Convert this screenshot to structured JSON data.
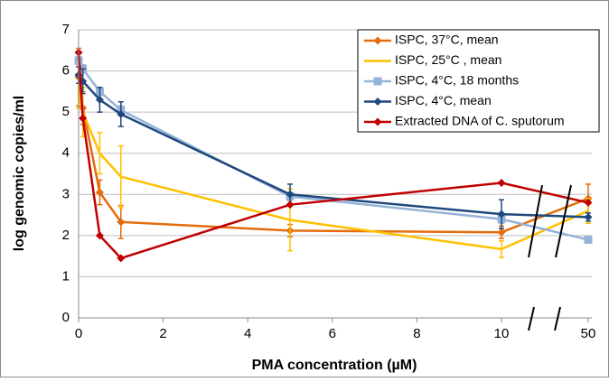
{
  "chart_data": {
    "type": "line",
    "x_label": "PMA concentration (µM)",
    "y_label": "log genomic copies/ml",
    "x": [
      0,
      0.1,
      0.5,
      1,
      5,
      10,
      50
    ],
    "xlim": [
      0,
      50
    ],
    "xticks": [
      0,
      2,
      4,
      6,
      8,
      10,
      50
    ],
    "axis_break": true,
    "ylim": [
      0,
      7
    ],
    "yticks": [
      0,
      1,
      2,
      3,
      4,
      5,
      6,
      7
    ],
    "grid": true,
    "legend": "upper right",
    "series": [
      {
        "name": "ISPC,  37°C, mean",
        "color": "#e46c0a",
        "marker": "diamond",
        "values": [
          5.85,
          5.1,
          3.05,
          2.33,
          2.12,
          2.08,
          2.9
        ],
        "errors": [
          0.7,
          0.4,
          0.3,
          0.4,
          0.15,
          0.15,
          0.35
        ]
      },
      {
        "name": "ISPC,  25°C , mean",
        "color": "#ffc000",
        "marker": "none",
        "values": [
          5.5,
          5.0,
          4.0,
          3.43,
          2.38,
          1.67,
          2.6
        ],
        "errors": [
          0.4,
          0.6,
          0.5,
          0.75,
          0.75,
          0.2,
          0.3
        ]
      },
      {
        "name": "ISPC, 4°C, 18 months",
        "color": "#95b3d7",
        "marker": "square",
        "values": [
          6.25,
          6.05,
          5.5,
          5.05,
          2.95,
          2.4,
          1.9
        ],
        "errors": [
          0.1,
          0.1,
          0.1,
          0.1,
          0.1,
          0.1,
          0.05
        ]
      },
      {
        "name": "ISPC,  4°C, mean",
        "color": "#1f497d",
        "marker": "diamond",
        "values": [
          5.9,
          5.75,
          5.3,
          4.95,
          3.0,
          2.52,
          2.45
        ],
        "errors": [
          0.2,
          0.3,
          0.3,
          0.3,
          0.25,
          0.35,
          0.1
        ]
      },
      {
        "name": "Extracted DNA of C. sputorum",
        "color": "#c00000",
        "marker": "diamond",
        "values": [
          6.45,
          4.85,
          2.0,
          1.45,
          2.75,
          3.28,
          2.8
        ]
      }
    ]
  }
}
